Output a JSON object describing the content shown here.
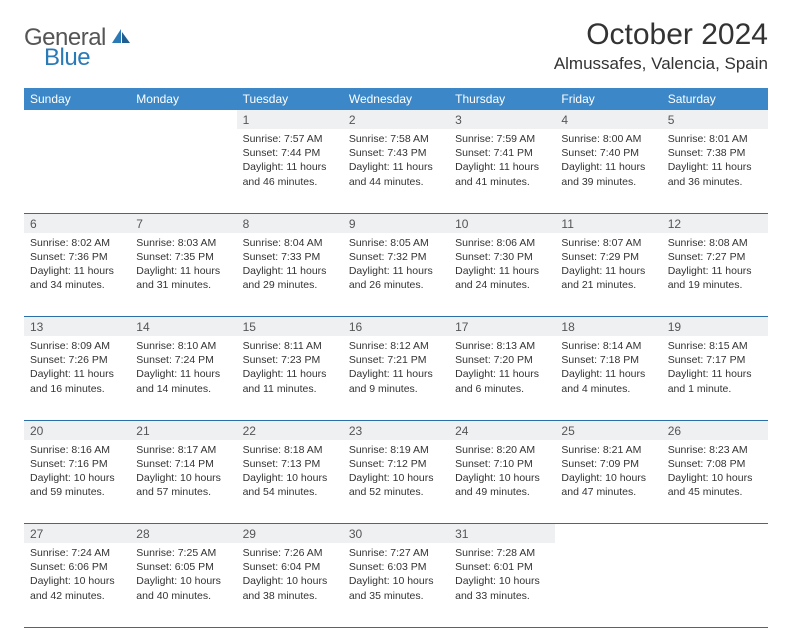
{
  "logo": {
    "text1": "General",
    "text2": "Blue"
  },
  "title": "October 2024",
  "location": "Almussafes, Valencia, Spain",
  "colors": {
    "header_bg": "#3b87c8",
    "header_text": "#ffffff",
    "daynum_bg": "#eef0f2",
    "border": "#2a6fa8",
    "logo_blue": "#2a7ab8"
  },
  "weekdays": [
    "Sunday",
    "Monday",
    "Tuesday",
    "Wednesday",
    "Thursday",
    "Friday",
    "Saturday"
  ],
  "weeks": [
    [
      null,
      null,
      {
        "n": "1",
        "sr": "Sunrise: 7:57 AM",
        "ss": "Sunset: 7:44 PM",
        "dl": "Daylight: 11 hours and 46 minutes."
      },
      {
        "n": "2",
        "sr": "Sunrise: 7:58 AM",
        "ss": "Sunset: 7:43 PM",
        "dl": "Daylight: 11 hours and 44 minutes."
      },
      {
        "n": "3",
        "sr": "Sunrise: 7:59 AM",
        "ss": "Sunset: 7:41 PM",
        "dl": "Daylight: 11 hours and 41 minutes."
      },
      {
        "n": "4",
        "sr": "Sunrise: 8:00 AM",
        "ss": "Sunset: 7:40 PM",
        "dl": "Daylight: 11 hours and 39 minutes."
      },
      {
        "n": "5",
        "sr": "Sunrise: 8:01 AM",
        "ss": "Sunset: 7:38 PM",
        "dl": "Daylight: 11 hours and 36 minutes."
      }
    ],
    [
      {
        "n": "6",
        "sr": "Sunrise: 8:02 AM",
        "ss": "Sunset: 7:36 PM",
        "dl": "Daylight: 11 hours and 34 minutes."
      },
      {
        "n": "7",
        "sr": "Sunrise: 8:03 AM",
        "ss": "Sunset: 7:35 PM",
        "dl": "Daylight: 11 hours and 31 minutes."
      },
      {
        "n": "8",
        "sr": "Sunrise: 8:04 AM",
        "ss": "Sunset: 7:33 PM",
        "dl": "Daylight: 11 hours and 29 minutes."
      },
      {
        "n": "9",
        "sr": "Sunrise: 8:05 AM",
        "ss": "Sunset: 7:32 PM",
        "dl": "Daylight: 11 hours and 26 minutes."
      },
      {
        "n": "10",
        "sr": "Sunrise: 8:06 AM",
        "ss": "Sunset: 7:30 PM",
        "dl": "Daylight: 11 hours and 24 minutes."
      },
      {
        "n": "11",
        "sr": "Sunrise: 8:07 AM",
        "ss": "Sunset: 7:29 PM",
        "dl": "Daylight: 11 hours and 21 minutes."
      },
      {
        "n": "12",
        "sr": "Sunrise: 8:08 AM",
        "ss": "Sunset: 7:27 PM",
        "dl": "Daylight: 11 hours and 19 minutes."
      }
    ],
    [
      {
        "n": "13",
        "sr": "Sunrise: 8:09 AM",
        "ss": "Sunset: 7:26 PM",
        "dl": "Daylight: 11 hours and 16 minutes."
      },
      {
        "n": "14",
        "sr": "Sunrise: 8:10 AM",
        "ss": "Sunset: 7:24 PM",
        "dl": "Daylight: 11 hours and 14 minutes."
      },
      {
        "n": "15",
        "sr": "Sunrise: 8:11 AM",
        "ss": "Sunset: 7:23 PM",
        "dl": "Daylight: 11 hours and 11 minutes."
      },
      {
        "n": "16",
        "sr": "Sunrise: 8:12 AM",
        "ss": "Sunset: 7:21 PM",
        "dl": "Daylight: 11 hours and 9 minutes."
      },
      {
        "n": "17",
        "sr": "Sunrise: 8:13 AM",
        "ss": "Sunset: 7:20 PM",
        "dl": "Daylight: 11 hours and 6 minutes."
      },
      {
        "n": "18",
        "sr": "Sunrise: 8:14 AM",
        "ss": "Sunset: 7:18 PM",
        "dl": "Daylight: 11 hours and 4 minutes."
      },
      {
        "n": "19",
        "sr": "Sunrise: 8:15 AM",
        "ss": "Sunset: 7:17 PM",
        "dl": "Daylight: 11 hours and 1 minute."
      }
    ],
    [
      {
        "n": "20",
        "sr": "Sunrise: 8:16 AM",
        "ss": "Sunset: 7:16 PM",
        "dl": "Daylight: 10 hours and 59 minutes."
      },
      {
        "n": "21",
        "sr": "Sunrise: 8:17 AM",
        "ss": "Sunset: 7:14 PM",
        "dl": "Daylight: 10 hours and 57 minutes."
      },
      {
        "n": "22",
        "sr": "Sunrise: 8:18 AM",
        "ss": "Sunset: 7:13 PM",
        "dl": "Daylight: 10 hours and 54 minutes."
      },
      {
        "n": "23",
        "sr": "Sunrise: 8:19 AM",
        "ss": "Sunset: 7:12 PM",
        "dl": "Daylight: 10 hours and 52 minutes."
      },
      {
        "n": "24",
        "sr": "Sunrise: 8:20 AM",
        "ss": "Sunset: 7:10 PM",
        "dl": "Daylight: 10 hours and 49 minutes."
      },
      {
        "n": "25",
        "sr": "Sunrise: 8:21 AM",
        "ss": "Sunset: 7:09 PM",
        "dl": "Daylight: 10 hours and 47 minutes."
      },
      {
        "n": "26",
        "sr": "Sunrise: 8:23 AM",
        "ss": "Sunset: 7:08 PM",
        "dl": "Daylight: 10 hours and 45 minutes."
      }
    ],
    [
      {
        "n": "27",
        "sr": "Sunrise: 7:24 AM",
        "ss": "Sunset: 6:06 PM",
        "dl": "Daylight: 10 hours and 42 minutes."
      },
      {
        "n": "28",
        "sr": "Sunrise: 7:25 AM",
        "ss": "Sunset: 6:05 PM",
        "dl": "Daylight: 10 hours and 40 minutes."
      },
      {
        "n": "29",
        "sr": "Sunrise: 7:26 AM",
        "ss": "Sunset: 6:04 PM",
        "dl": "Daylight: 10 hours and 38 minutes."
      },
      {
        "n": "30",
        "sr": "Sunrise: 7:27 AM",
        "ss": "Sunset: 6:03 PM",
        "dl": "Daylight: 10 hours and 35 minutes."
      },
      {
        "n": "31",
        "sr": "Sunrise: 7:28 AM",
        "ss": "Sunset: 6:01 PM",
        "dl": "Daylight: 10 hours and 33 minutes."
      },
      null,
      null
    ]
  ]
}
